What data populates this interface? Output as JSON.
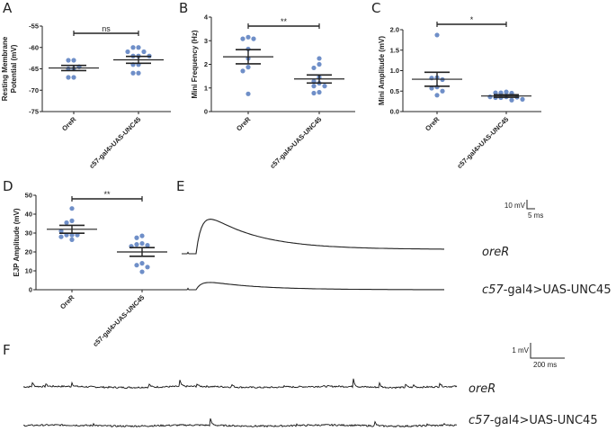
{
  "panels": {
    "A": {
      "letter": "A"
    },
    "B": {
      "letter": "B"
    },
    "C": {
      "letter": "C"
    },
    "D": {
      "letter": "D"
    },
    "E": {
      "letter": "E"
    },
    "F": {
      "letter": "F"
    }
  },
  "chart_data": [
    {
      "id": "A",
      "type": "scatter",
      "title": "",
      "ylabel": [
        "Resting Membrane",
        "Potential (mV)"
      ],
      "categories": [
        "OreR",
        "c57-gal4>UAS-UNC45"
      ],
      "ylim": [
        -75,
        -55
      ],
      "yticks": [
        -55,
        -60,
        -65,
        -70,
        -75
      ],
      "ytick_labels": [
        "-55",
        "-60",
        "-65",
        "-70",
        "-75"
      ],
      "series": [
        {
          "name": "OreR",
          "points": [
            -63,
            -63,
            -65,
            -65,
            -67,
            -67,
            -64.5
          ],
          "mean": -64.8,
          "sem": 0.6
        },
        {
          "name": "c57-gal4>UAS-UNC45",
          "points": [
            -60,
            -60,
            -61,
            -61,
            -62,
            -62,
            -62,
            -64,
            -64,
            -66,
            -66
          ],
          "mean": -62.9,
          "sem": 0.8
        }
      ],
      "significance": "ns"
    },
    {
      "id": "B",
      "type": "scatter",
      "title": "",
      "ylabel": [
        "Mini Frequency (Hz)"
      ],
      "categories": [
        "OreR",
        "c57-gal4>UAS-UNC45"
      ],
      "ylim": [
        0,
        4
      ],
      "yticks": [
        0,
        1,
        2,
        3,
        4
      ],
      "ytick_labels": [
        "0",
        "1",
        "2",
        "3",
        "4"
      ],
      "series": [
        {
          "name": "OreR",
          "points": [
            3.15,
            3.08,
            3.08,
            2.65,
            2.25,
            1.88,
            1.72,
            0.75
          ],
          "mean": 2.32,
          "sem": 0.3
        },
        {
          "name": "c57-gal4>UAS-UNC45",
          "points": [
            2.25,
            2.0,
            1.85,
            1.45,
            1.28,
            1.2,
            1.08,
            1.08,
            0.82,
            0.78
          ],
          "mean": 1.38,
          "sem": 0.17
        }
      ],
      "significance": "**"
    },
    {
      "id": "C",
      "type": "scatter",
      "title": "",
      "ylabel": [
        "Mini Amplitude (mV)"
      ],
      "categories": [
        "OreR",
        "c57-gal4>UAS-UNC45"
      ],
      "ylim": [
        0,
        2.2
      ],
      "yticks": [
        0,
        0.5,
        1.0,
        1.5,
        2.0
      ],
      "ytick_labels": [
        "0.0",
        "0.5",
        "1.0",
        "1.5",
        "2.0"
      ],
      "series": [
        {
          "name": "OreR",
          "points": [
            1.87,
            0.83,
            0.82,
            0.78,
            0.6,
            0.57,
            0.5,
            0.4
          ],
          "mean": 0.79,
          "sem": 0.17
        },
        {
          "name": "c57-gal4>UAS-UNC45",
          "points": [
            0.48,
            0.46,
            0.45,
            0.46,
            0.36,
            0.35,
            0.34,
            0.34,
            0.36,
            0.28,
            0.3
          ],
          "mean": 0.38,
          "sem": 0.03
        }
      ],
      "significance": "*"
    },
    {
      "id": "D",
      "type": "scatter",
      "title": "",
      "ylabel": [
        "EJP Amplitude (mV)"
      ],
      "categories": [
        "OreR",
        "c57-gal4>UAS-UNC45"
      ],
      "ylim": [
        0,
        50
      ],
      "yticks": [
        0,
        10,
        20,
        30,
        40,
        50
      ],
      "ytick_labels": [
        "0",
        "10",
        "20",
        "30",
        "40",
        "50"
      ],
      "series": [
        {
          "name": "OreR",
          "points": [
            43,
            36.5,
            35.5,
            29,
            29,
            29,
            28,
            26.5,
            31
          ],
          "mean": 32,
          "sem": 2.1
        },
        {
          "name": "c57-gal4>UAS-UNC45",
          "points": [
            28.5,
            27.5,
            24.5,
            24,
            23.5,
            23,
            14,
            13,
            12,
            9.5
          ],
          "mean": 20,
          "sem": 2.3
        }
      ],
      "significance": "**"
    },
    {
      "id": "E",
      "type": "line",
      "title": "",
      "traces": [
        {
          "name": "oreR",
          "label_italic": "oreR",
          "label_rest": "",
          "peak_mV": 37,
          "baseline_end_mV": 4
        },
        {
          "name": "c57-gal4>UAS-UNC45",
          "label_italic": "c57",
          "label_rest": "-gal4>UAS-UNC45",
          "peak_mV": 8,
          "baseline_end_mV": 0
        }
      ],
      "scale_bar": {
        "y_label": "10 mV",
        "x_label": "5 ms"
      }
    },
    {
      "id": "F",
      "type": "line",
      "title": "",
      "traces": [
        {
          "name": "oreR",
          "label_italic": "oreR",
          "label_rest": "",
          "event_times_frac": [
            0.02,
            0.05,
            0.11,
            0.29,
            0.36,
            0.4,
            0.48,
            0.6,
            0.76,
            0.82,
            0.88,
            0.9,
            0.96
          ]
        },
        {
          "name": "c57-gal4>UAS-UNC45",
          "label_italic": "c57",
          "label_rest": "-gal4>UAS-UNC45",
          "event_times_frac": [
            0.16,
            0.43,
            0.63,
            0.81,
            0.93,
            0.97
          ]
        }
      ],
      "scale_bar": {
        "y_label": "1 mV",
        "x_label": "200 ms"
      }
    }
  ]
}
